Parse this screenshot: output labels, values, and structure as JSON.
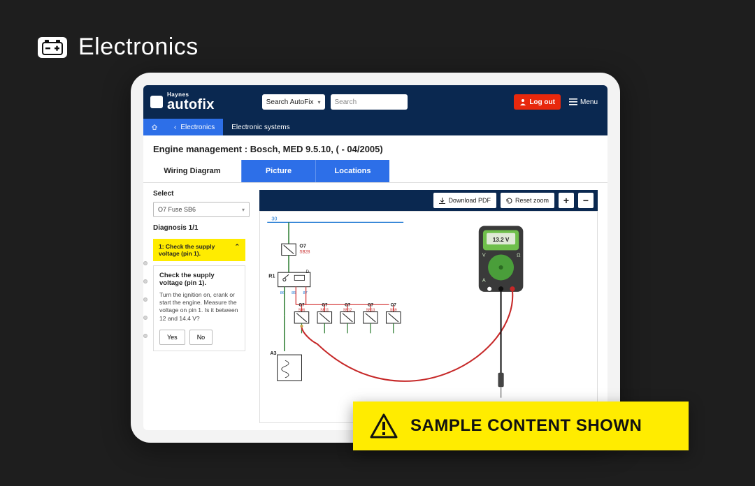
{
  "category": {
    "title": "Electronics"
  },
  "header": {
    "brand_small": "Haynes",
    "brand_big": "autofix",
    "search_scope": "Search AutoFix",
    "search_placeholder": "Search",
    "logout": "Log out",
    "menu": "Menu"
  },
  "breadcrumb": {
    "back": "Electronics",
    "current": "Electronic systems"
  },
  "page_title": "Engine management :  Bosch, MED 9.5.10, ( - 04/2005)",
  "tabs": [
    "Wiring Diagram",
    "Picture",
    "Locations"
  ],
  "sidebar": {
    "select_label": "Select",
    "select_value": "O7  Fuse  SB6",
    "diagnosis_label": "Diagnosis 1/1",
    "accordion_head": "1: Check the supply voltage (pin 1).",
    "accordion_title": "Check the supply voltage (pin 1).",
    "accordion_text": "Turn the ignition on, crank or start the engine. Measure the voltage on pin 1. Is it between 12 and 14.4 V?",
    "yes": "Yes",
    "no": "No"
  },
  "viewer_toolbar": {
    "download": "Download PDF",
    "reset": "Reset zoom",
    "zoom_in": "+",
    "zoom_out": "−"
  },
  "multimeter": {
    "reading": "13.2 V"
  },
  "diagram": {
    "colors": {
      "wire_green": "#2e7d32",
      "wire_red": "#d32f2f",
      "wire_blue": "#1976d2",
      "label": "#c62828",
      "box_stroke": "#222"
    },
    "top_label_num": "30",
    "o7_top": {
      "code": "O7",
      "sub": "SB28"
    },
    "r1_label": "R1",
    "d_label": "D",
    "pins": [
      "86",
      "85",
      "87"
    ],
    "branch": [
      {
        "code": "O7",
        "sub": "SB6"
      },
      {
        "code": "O7",
        "sub": "SB11"
      },
      {
        "code": "O7",
        "sub": "SB12"
      },
      {
        "code": "O7",
        "sub": "SB13"
      },
      {
        "code": "O7",
        "sub": "SB9"
      }
    ],
    "a3_label": "A3"
  },
  "banner": {
    "text": "SAMPLE CONTENT SHOWN"
  },
  "colors": {
    "page_bg": "#1e1e1e",
    "header_bg": "#0a2850",
    "accent_blue": "#2d6fe8",
    "logout_red": "#e8280c",
    "banner_yellow": "#ffec00"
  }
}
